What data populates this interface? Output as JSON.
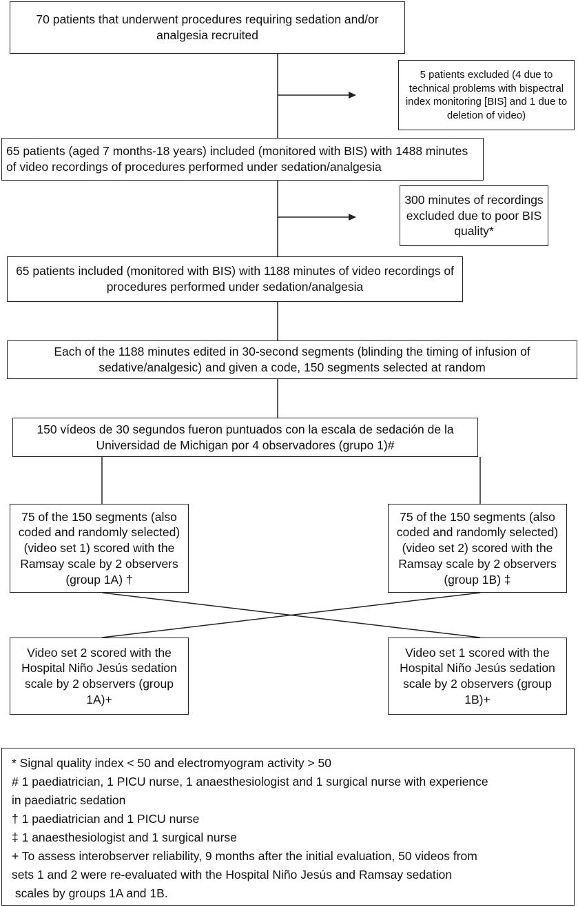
{
  "nodes": {
    "recruited": "70 patients that underwent procedures requiring sedation and/or analgesia recruited",
    "excluded_patients": "5 patients excluded (4 due to technical problems with bispectral index monitoring [BIS] and 1 due to deletion of video)",
    "included_1488": "65 patients (aged 7 months-18 years) included (monitored with BIS) with 1488 minutes of video recordings of procedures performed under sedation/analgesia",
    "excluded_minutes": "300 minutes of recordings excluded due to poor BIS quality*",
    "included_1188": "65 patients included (monitored with BIS) with 1188 minutes of video recordings of procedures performed under sedation/analgesia",
    "edited_segments": "Each of the 1188 minutes edited in 30-second segments (blinding the timing of infusion of sedative/analgesic) and given a code, 150 segments selected at random",
    "michigan_scored": "150 vídeos de 30 segundos fueron puntuados con la escala de sedación de la Universidad de Michigan por 4 observadores (grupo 1)#",
    "ramsay_set1": "75 of the 150 segments (also coded and randomly selected) (video set 1) scored with the Ramsay scale by 2 observers (group 1A) †",
    "ramsay_set2": "75 of the 150 segments (also coded and randomly selected) (video set 2) scored with the Ramsay scale by 2 observers (group 1B) ‡",
    "hnj_set2": "Video set 2 scored with the Hospital Niño Jesús sedation scale by 2 observers (group 1A)+",
    "hnj_set1": "Video set 1 scored with the Hospital Niño Jesús sedation scale by 2 observers (group 1B)+"
  },
  "footnotes": [
    "* Signal quality index < 50 and electromyogram activity > 50",
    "# 1 paediatrician, 1 PICU nurse, 1 anaesthesiologist and 1 surgical nurse with experience",
    "in paediatric sedation",
    "† 1 paediatrician and 1 PICU nurse",
    "‡ 1 anaesthesiologist and 1 surgical nurse",
    "+ To assess interobserver reliability, 9 months after the initial evaluation, 50 videos from",
    "sets 1 and 2 were re-evaluated with the Hospital Niño Jesús and Ramsay sedation",
    " scales by groups 1A and 1B."
  ]
}
